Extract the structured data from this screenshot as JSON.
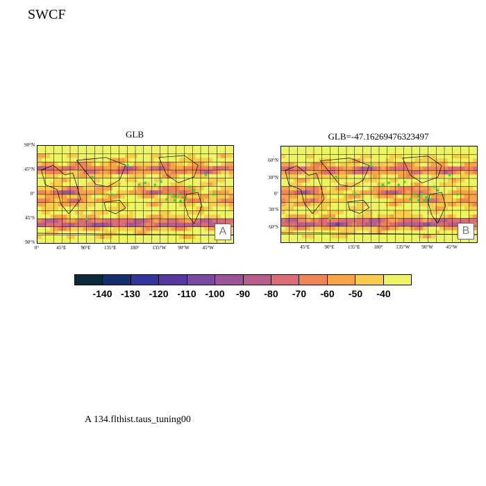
{
  "title": "SWCF",
  "panels": [
    {
      "id": "left",
      "title": "GLB",
      "badge": "A",
      "y_ticks": [
        "90°N",
        "45°N",
        "0°",
        "45°S",
        "90°S"
      ],
      "x_ticks": [
        "0°",
        "45°E",
        "90°E",
        "135°E",
        "180°",
        "135°W",
        "90°W",
        "45°W"
      ]
    },
    {
      "id": "right",
      "title": "GLB=-47.16269476323497",
      "badge": "B",
      "y_ticks": [
        "60°N",
        "30°N",
        "0°",
        "30°S",
        "60°S"
      ],
      "x_ticks": [
        "45°E",
        "90°E",
        "135°E",
        "180°",
        "135°W",
        "90°W",
        "45°W"
      ]
    }
  ],
  "colorbar": {
    "colors": [
      "#0c2a3a",
      "#152f6b",
      "#33359c",
      "#55399f",
      "#7a4a9f",
      "#9b5498",
      "#b75f8c",
      "#d96c74",
      "#ed8558",
      "#f7a347",
      "#f6cd4d",
      "#eef564"
    ],
    "labels": [
      "-140",
      "-130",
      "-120",
      "-110",
      "-100",
      "-90",
      "-80",
      "-70",
      "-60",
      "-50",
      "-40"
    ]
  },
  "footnote": "A  134.flthist.taus_tuning00"
}
